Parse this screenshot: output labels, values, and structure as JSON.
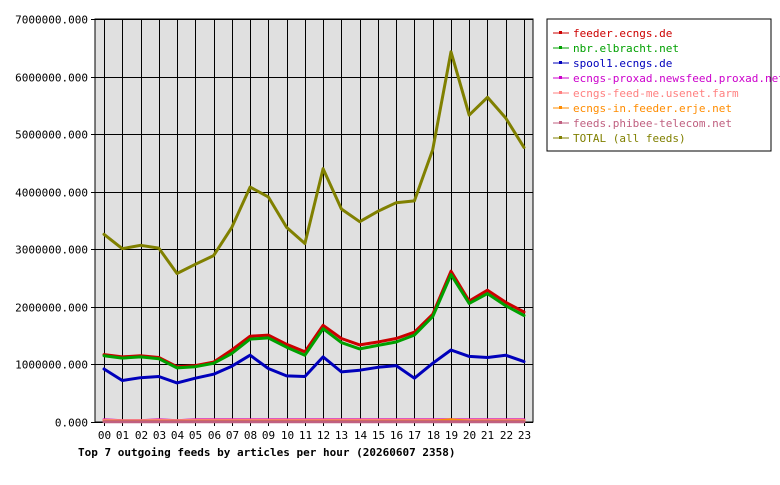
{
  "chart_data": {
    "type": "line",
    "title": "Top 7 outgoing feeds by articles per hour (20260607 2358)",
    "xlabel": "",
    "ylabel": "",
    "categories": [
      "00",
      "01",
      "02",
      "03",
      "04",
      "05",
      "06",
      "07",
      "08",
      "09",
      "10",
      "11",
      "12",
      "13",
      "14",
      "15",
      "16",
      "17",
      "18",
      "19",
      "20",
      "21",
      "22",
      "23"
    ],
    "ylim": [
      0,
      7000000
    ],
    "y_ticks": [
      "0.000",
      "1000000.000",
      "2000000.000",
      "3000000.000",
      "4000000.000",
      "5000000.000",
      "6000000.000",
      "7000000.000"
    ],
    "y_tick_values": [
      0,
      1000000,
      2000000,
      3000000,
      4000000,
      5000000,
      6000000,
      7000000
    ],
    "grid": true,
    "legend_position": "right",
    "series": [
      {
        "name": "feeder.ecngs.de",
        "color": "#cc0000",
        "values": [
          1170000,
          1130000,
          1150000,
          1120000,
          960000,
          980000,
          1040000,
          1250000,
          1490000,
          1510000,
          1350000,
          1220000,
          1680000,
          1450000,
          1340000,
          1390000,
          1450000,
          1560000,
          1870000,
          2620000,
          2100000,
          2290000,
          2080000,
          1910000
        ]
      },
      {
        "name": "nbr.elbracht.net",
        "color": "#00a000",
        "values": [
          1150000,
          1110000,
          1130000,
          1100000,
          940000,
          960000,
          1020000,
          1190000,
          1440000,
          1460000,
          1300000,
          1160000,
          1620000,
          1380000,
          1270000,
          1330000,
          1390000,
          1510000,
          1830000,
          2560000,
          2060000,
          2230000,
          2020000,
          1850000
        ]
      },
      {
        "name": "spool1.ecngs.de",
        "color": "#0000bb",
        "values": [
          920000,
          720000,
          770000,
          790000,
          680000,
          760000,
          830000,
          970000,
          1160000,
          930000,
          800000,
          790000,
          1130000,
          870000,
          900000,
          950000,
          980000,
          760000,
          1020000,
          1250000,
          1140000,
          1120000,
          1160000,
          1050000
        ]
      },
      {
        "name": "ecngs-proxad.newsfeed.proxad.net",
        "color": "#cc00cc",
        "values": [
          40000,
          20000,
          20000,
          40000,
          20000,
          40000,
          40000,
          40000,
          40000,
          40000,
          40000,
          40000,
          40000,
          40000,
          40000,
          40000,
          40000,
          40000,
          40000,
          40000,
          40000,
          40000,
          40000,
          40000
        ]
      },
      {
        "name": "ecngs-feed-me.usenet.farm",
        "color": "#ff8080",
        "values": [
          30000,
          20000,
          20000,
          30000,
          20000,
          30000,
          30000,
          30000,
          30000,
          30000,
          30000,
          30000,
          30000,
          30000,
          30000,
          30000,
          30000,
          30000,
          30000,
          30000,
          30000,
          30000,
          30000,
          30000
        ]
      },
      {
        "name": "ecngs-in.feeder.erje.net",
        "color": "#ff8c00",
        "values": [
          10000,
          10000,
          10000,
          10000,
          10000,
          10000,
          10000,
          10000,
          10000,
          10000,
          10000,
          10000,
          10000,
          10000,
          10000,
          10000,
          10000,
          10000,
          10000,
          40000,
          10000,
          10000,
          10000,
          10000
        ]
      },
      {
        "name": "feeds.phibee-telecom.net",
        "color": "#c06080",
        "values": [
          5000,
          5000,
          5000,
          5000,
          5000,
          5000,
          5000,
          5000,
          5000,
          5000,
          5000,
          5000,
          5000,
          5000,
          5000,
          5000,
          5000,
          5000,
          5000,
          5000,
          5000,
          5000,
          5000,
          5000
        ]
      },
      {
        "name": "TOTAL (all feeds)",
        "color": "#808000",
        "values": [
          3260000,
          3010000,
          3070000,
          3020000,
          2580000,
          2740000,
          2890000,
          3380000,
          4080000,
          3910000,
          3380000,
          3100000,
          4400000,
          3700000,
          3480000,
          3660000,
          3810000,
          3840000,
          4730000,
          6430000,
          5330000,
          5640000,
          5280000,
          4770000
        ]
      }
    ]
  }
}
